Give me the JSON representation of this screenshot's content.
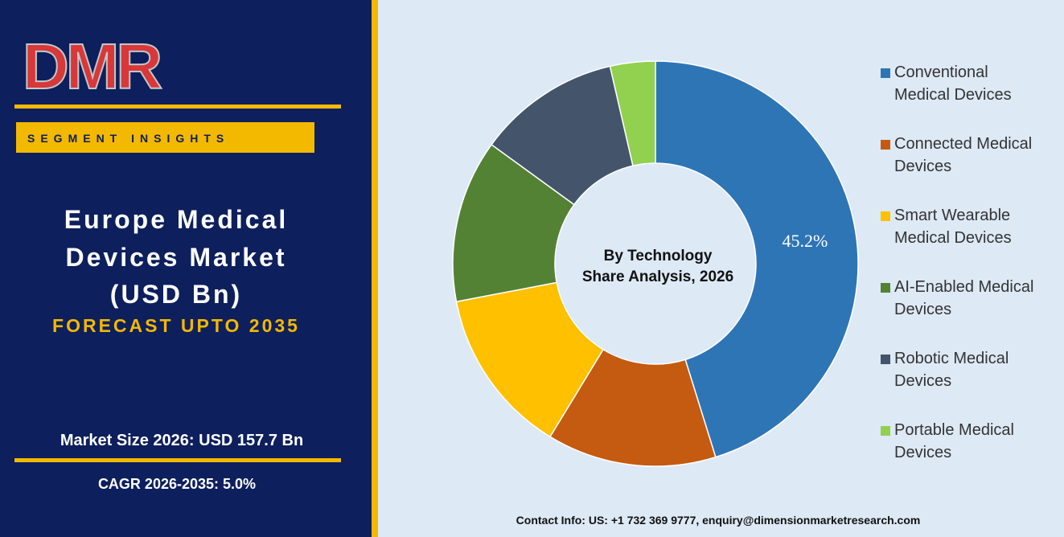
{
  "logo": "DMR",
  "badge": "SEGMENT INSIGHTS",
  "headline_lines": [
    "Europe Medical",
    "Devices Market",
    "(USD Bn)"
  ],
  "forecast": "FORECAST UPTO 2035",
  "market_size": "Market Size 2026: USD 157.7 Bn",
  "cagr": "CAGR 2026-2035: 5.0%",
  "contact": "Contact Info: US: +1 732 369 9777, enquiry@dimensionmarketresearch.com",
  "chart_data": {
    "type": "donut",
    "title_lines": [
      "By Technology",
      "Share Analysis, 2026"
    ],
    "categories": [
      "Conventional Medical Devices",
      "Connected Medical Devices",
      "Smart Wearable Medical Devices",
      "AI-Enabled Medical Devices",
      "Robotic Medical Devices",
      "Portable Medical Devices"
    ],
    "values": [
      45.2,
      13.5,
      13.3,
      13.0,
      11.4,
      3.6
    ],
    "value_labels": [
      "45.2%",
      null,
      null,
      null,
      null,
      null
    ],
    "colors": [
      "#2e75b6",
      "#c55a11",
      "#ffc000",
      "#548235",
      "#44546a",
      "#92d050"
    ],
    "legend": "right"
  }
}
